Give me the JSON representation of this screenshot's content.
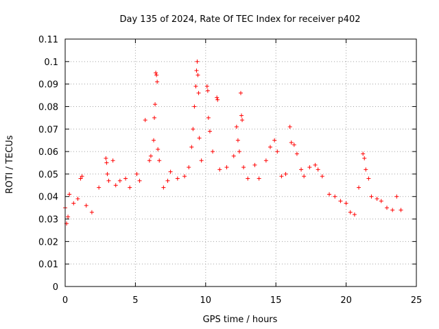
{
  "chart_data": {
    "type": "scatter",
    "title": "Day 135 of 2024, Rate Of TEC Index for receiver p402",
    "xlabel": "GPS time / hours",
    "ylabel": "ROTI / TECUs",
    "xlim": [
      0,
      25
    ],
    "ylim": [
      0,
      0.11
    ],
    "xticks": [
      0,
      5,
      10,
      15,
      20,
      25
    ],
    "xtick_labels": [
      "0",
      "5",
      "10",
      "15",
      "20",
      "25"
    ],
    "yticks": [
      0,
      0.01,
      0.02,
      0.03,
      0.04,
      0.05,
      0.06,
      0.07,
      0.08,
      0.09,
      0.1,
      0.11
    ],
    "ytick_labels": [
      "0",
      "0.01",
      "0.02",
      "0.03",
      "0.04",
      "0.05",
      "0.06",
      "0.07",
      "0.08",
      "0.09",
      "0.1",
      "0.11"
    ],
    "grid": true,
    "marker": "+",
    "series": [
      {
        "name": "ROTI",
        "color": "#ff0000",
        "points": [
          [
            0.0,
            0.035
          ],
          [
            0.1,
            0.028
          ],
          [
            0.2,
            0.031
          ],
          [
            0.3,
            0.041
          ],
          [
            0.6,
            0.037
          ],
          [
            0.9,
            0.039
          ],
          [
            1.1,
            0.048
          ],
          [
            1.2,
            0.049
          ],
          [
            1.5,
            0.036
          ],
          [
            1.9,
            0.033
          ],
          [
            2.4,
            0.044
          ],
          [
            2.9,
            0.057
          ],
          [
            2.95,
            0.055
          ],
          [
            3.0,
            0.05
          ],
          [
            3.1,
            0.047
          ],
          [
            3.4,
            0.056
          ],
          [
            3.6,
            0.045
          ],
          [
            3.9,
            0.047
          ],
          [
            4.3,
            0.048
          ],
          [
            4.6,
            0.044
          ],
          [
            5.1,
            0.05
          ],
          [
            5.3,
            0.047
          ],
          [
            5.7,
            0.074
          ],
          [
            6.0,
            0.056
          ],
          [
            6.1,
            0.058
          ],
          [
            6.3,
            0.065
          ],
          [
            6.35,
            0.075
          ],
          [
            6.4,
            0.081
          ],
          [
            6.45,
            0.095
          ],
          [
            6.5,
            0.094
          ],
          [
            6.55,
            0.091
          ],
          [
            6.6,
            0.061
          ],
          [
            6.7,
            0.056
          ],
          [
            7.0,
            0.044
          ],
          [
            7.3,
            0.047
          ],
          [
            7.5,
            0.051
          ],
          [
            8.0,
            0.048
          ],
          [
            8.5,
            0.049
          ],
          [
            8.8,
            0.053
          ],
          [
            9.0,
            0.062
          ],
          [
            9.1,
            0.07
          ],
          [
            9.2,
            0.08
          ],
          [
            9.3,
            0.089
          ],
          [
            9.35,
            0.096
          ],
          [
            9.4,
            0.1
          ],
          [
            9.45,
            0.094
          ],
          [
            9.5,
            0.086
          ],
          [
            9.55,
            0.066
          ],
          [
            9.7,
            0.056
          ],
          [
            10.1,
            0.089
          ],
          [
            10.15,
            0.087
          ],
          [
            10.2,
            0.075
          ],
          [
            10.3,
            0.069
          ],
          [
            10.5,
            0.06
          ],
          [
            10.8,
            0.084
          ],
          [
            10.85,
            0.083
          ],
          [
            11.0,
            0.052
          ],
          [
            11.5,
            0.053
          ],
          [
            12.0,
            0.058
          ],
          [
            12.2,
            0.071
          ],
          [
            12.3,
            0.065
          ],
          [
            12.4,
            0.06
          ],
          [
            12.5,
            0.086
          ],
          [
            12.55,
            0.076
          ],
          [
            12.6,
            0.074
          ],
          [
            12.7,
            0.053
          ],
          [
            13.0,
            0.048
          ],
          [
            13.5,
            0.054
          ],
          [
            13.8,
            0.048
          ],
          [
            14.3,
            0.056
          ],
          [
            14.6,
            0.062
          ],
          [
            14.9,
            0.065
          ],
          [
            15.1,
            0.06
          ],
          [
            15.4,
            0.049
          ],
          [
            15.7,
            0.05
          ],
          [
            16.0,
            0.071
          ],
          [
            16.1,
            0.064
          ],
          [
            16.3,
            0.063
          ],
          [
            16.5,
            0.059
          ],
          [
            16.8,
            0.052
          ],
          [
            17.0,
            0.049
          ],
          [
            17.4,
            0.053
          ],
          [
            17.8,
            0.054
          ],
          [
            18.0,
            0.052
          ],
          [
            18.3,
            0.049
          ],
          [
            18.8,
            0.041
          ],
          [
            19.2,
            0.04
          ],
          [
            19.6,
            0.038
          ],
          [
            20.0,
            0.037
          ],
          [
            20.3,
            0.033
          ],
          [
            20.6,
            0.032
          ],
          [
            20.9,
            0.044
          ],
          [
            21.2,
            0.059
          ],
          [
            21.3,
            0.057
          ],
          [
            21.4,
            0.052
          ],
          [
            21.6,
            0.048
          ],
          [
            21.8,
            0.04
          ],
          [
            22.2,
            0.039
          ],
          [
            22.5,
            0.038
          ],
          [
            22.9,
            0.035
          ],
          [
            23.3,
            0.034
          ],
          [
            23.6,
            0.04
          ],
          [
            23.9,
            0.034
          ]
        ]
      }
    ]
  }
}
